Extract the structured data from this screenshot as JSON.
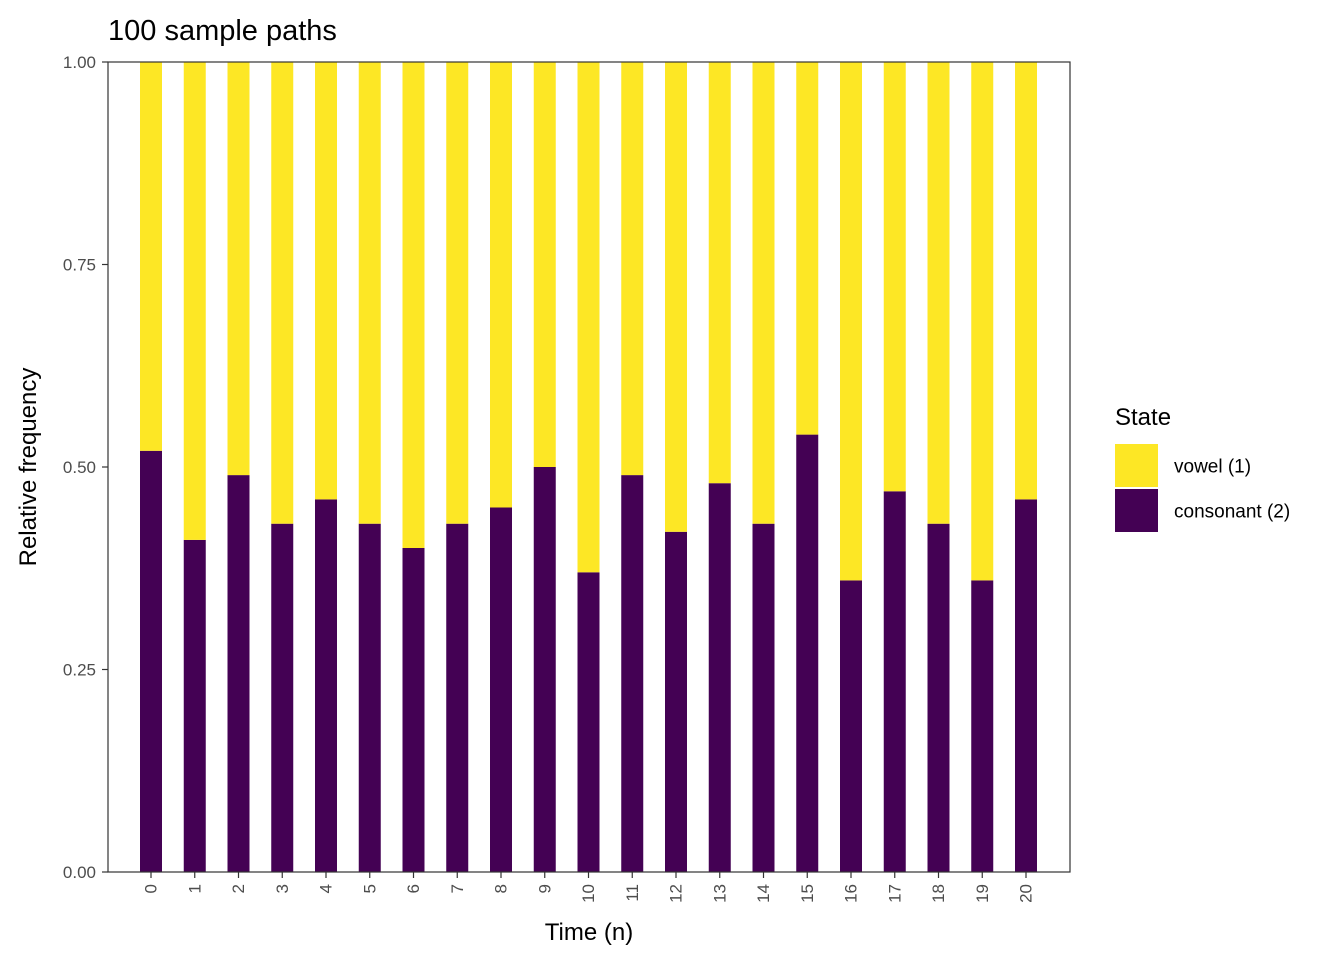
{
  "chart_data": {
    "type": "bar",
    "stacked": true,
    "title": "100 sample paths",
    "xlabel": "Time (n)",
    "ylabel": "Relative frequency",
    "ylim": [
      0,
      1
    ],
    "yticks": [
      "0.00",
      "0.25",
      "0.50",
      "0.75",
      "1.00"
    ],
    "grid": false,
    "legend_position": "right",
    "categories": [
      "0",
      "1",
      "2",
      "3",
      "4",
      "5",
      "6",
      "7",
      "8",
      "9",
      "10",
      "11",
      "12",
      "13",
      "14",
      "15",
      "16",
      "17",
      "18",
      "19",
      "20"
    ],
    "series": [
      {
        "name": "consonant (2)",
        "color": "#440154",
        "values": [
          0.52,
          0.41,
          0.49,
          0.43,
          0.46,
          0.43,
          0.4,
          0.43,
          0.45,
          0.5,
          0.37,
          0.49,
          0.42,
          0.48,
          0.43,
          0.54,
          0.36,
          0.47,
          0.43,
          0.36,
          0.46
        ]
      },
      {
        "name": "vowel (1)",
        "color": "#FDE725",
        "values": [
          0.48,
          0.59,
          0.51,
          0.57,
          0.54,
          0.57,
          0.6,
          0.57,
          0.55,
          0.5,
          0.63,
          0.51,
          0.58,
          0.52,
          0.57,
          0.46,
          0.64,
          0.53,
          0.57,
          0.64,
          0.54
        ]
      }
    ],
    "legend": {
      "title": "State",
      "entries": [
        {
          "label": "vowel (1)",
          "color": "#FDE725"
        },
        {
          "label": "consonant (2)",
          "color": "#440154"
        }
      ]
    }
  }
}
